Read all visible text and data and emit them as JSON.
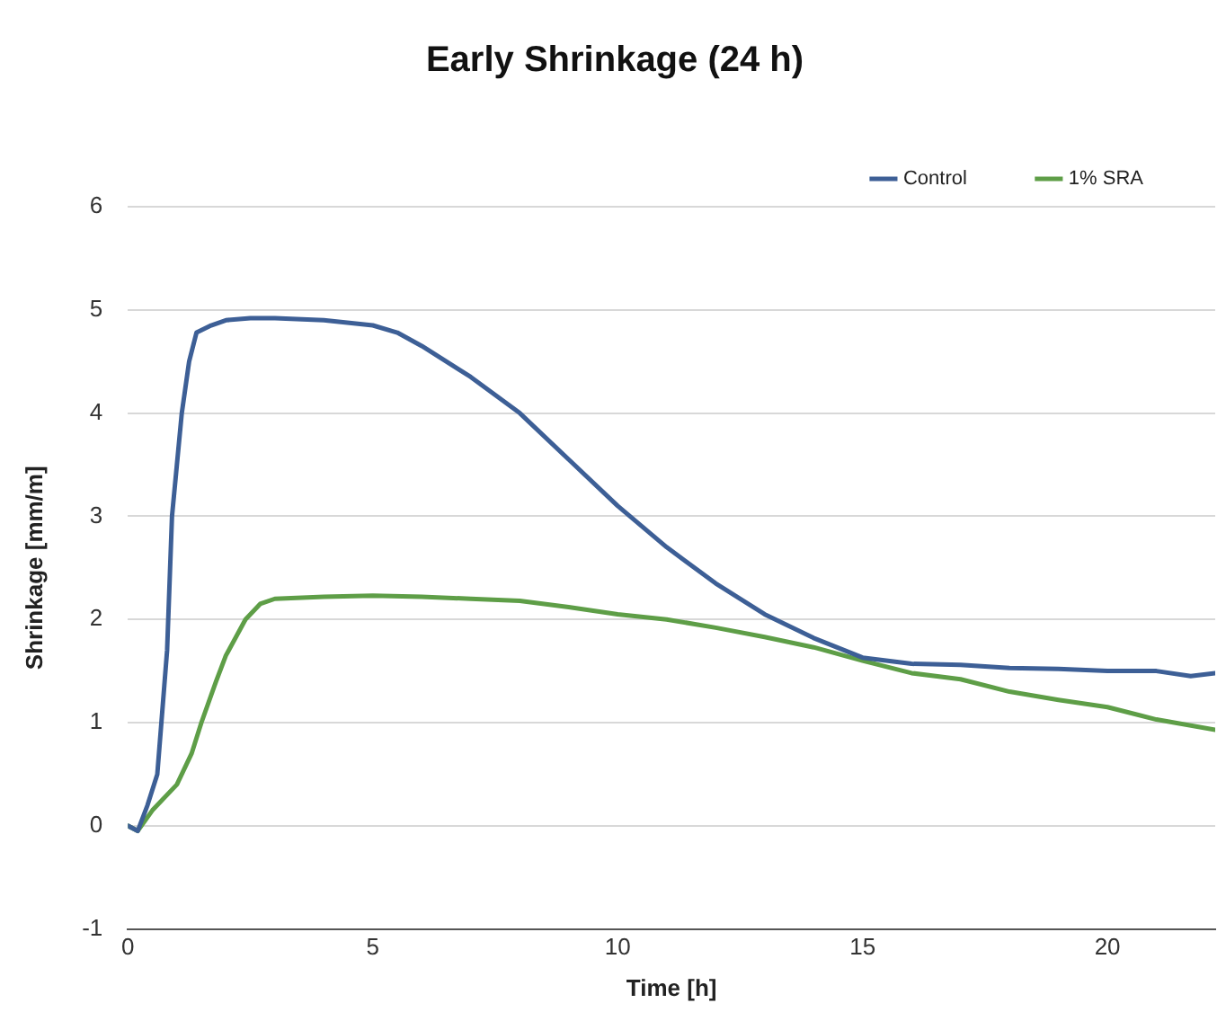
{
  "chart_data": {
    "type": "line",
    "title": "Early Shrinkage (24 h)",
    "xlabel": "Time [h]",
    "ylabel": "Shrinkage [mm/m]",
    "xlim": [
      0,
      22.2
    ],
    "xticks": [
      0,
      5,
      10,
      15,
      20
    ],
    "ylim": [
      -1,
      6
    ],
    "yticks": [
      -1,
      0,
      1,
      2,
      3,
      4,
      5,
      6
    ],
    "grid": "y",
    "legend": "top right",
    "marker": "none",
    "line_style": "solid",
    "series": [
      {
        "name": "Control",
        "color": "#3d5f96",
        "x": [
          0,
          0.2,
          0.4,
          0.6,
          0.8,
          0.9,
          1.0,
          1.1,
          1.25,
          1.4,
          1.7,
          2,
          2.5,
          3,
          4,
          5,
          5.5,
          6,
          7,
          8,
          9,
          10,
          11,
          12,
          13,
          14,
          15,
          16,
          17,
          18,
          19,
          20,
          21,
          21.7,
          22.2
        ],
        "values": [
          0,
          -0.05,
          0.2,
          0.5,
          1.7,
          3,
          3.5,
          4,
          4.5,
          4.78,
          4.85,
          4.9,
          4.92,
          4.92,
          4.9,
          4.85,
          4.78,
          4.65,
          4.35,
          4.0,
          3.55,
          3.1,
          2.7,
          2.35,
          2.05,
          1.82,
          1.63,
          1.57,
          1.56,
          1.53,
          1.52,
          1.5,
          1.5,
          1.45,
          1.48
        ]
      },
      {
        "name": "1% SRA",
        "color": "#5e9e47",
        "x": [
          0,
          0.2,
          0.5,
          1,
          1.3,
          1.5,
          1.8,
          2,
          2.4,
          2.7,
          3,
          4,
          5,
          6,
          7,
          8,
          9,
          10,
          11,
          12,
          13,
          14,
          15,
          16,
          17,
          18,
          19,
          20,
          21,
          22.2
        ],
        "values": [
          0,
          -0.05,
          0.15,
          0.4,
          0.7,
          1.0,
          1.4,
          1.65,
          2.0,
          2.15,
          2.2,
          2.22,
          2.23,
          2.22,
          2.2,
          2.18,
          2.12,
          2.05,
          2.0,
          1.92,
          1.83,
          1.73,
          1.6,
          1.48,
          1.42,
          1.3,
          1.22,
          1.15,
          1.03,
          0.93
        ]
      }
    ]
  }
}
